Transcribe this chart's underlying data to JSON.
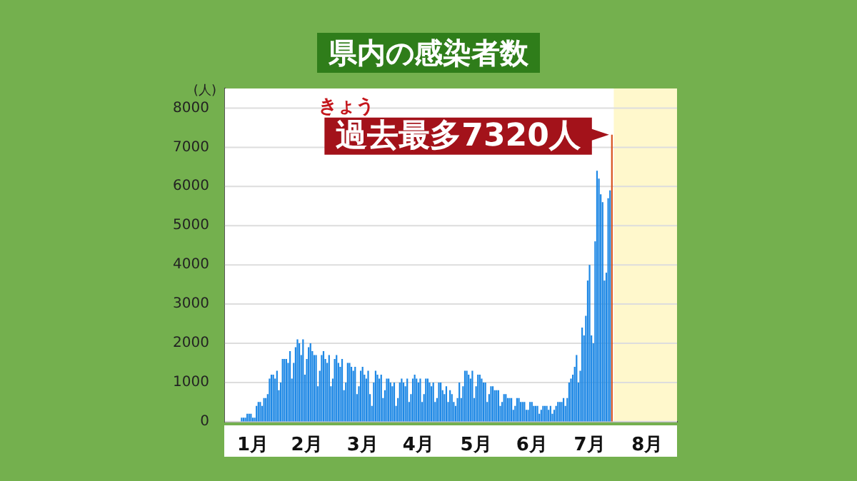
{
  "chart_data": {
    "type": "bar",
    "title": "県内の感染者数",
    "ylabel": "(人)",
    "xlim": [
      "--01-01",
      "--09-01"
    ],
    "xticks": [
      {
        "value": "--01-16",
        "label": "1月"
      },
      {
        "value": "--02-14",
        "label": "2月"
      },
      {
        "value": "--03-16",
        "label": "3月"
      },
      {
        "value": "--04-15",
        "label": "4月"
      },
      {
        "value": "--05-16",
        "label": "5月"
      },
      {
        "value": "--06-15",
        "label": "6月"
      },
      {
        "value": "--07-16",
        "label": "7月"
      },
      {
        "value": "--08-16",
        "label": "8月"
      }
    ],
    "ylim": [
      0,
      8500
    ],
    "yticks": [
      0,
      1000,
      2000,
      3000,
      4000,
      5000,
      6000,
      7000,
      8000
    ],
    "grid": "y",
    "legend": false,
    "bands": [
      {
        "axis": "x",
        "from": "--07-29",
        "to": "--09-01",
        "label": null,
        "color": "#fff8cc"
      }
    ],
    "annotations": [
      {
        "text": "きょう"
      },
      {
        "text": "過去最多7320人",
        "x": "--07-28",
        "y": 7320
      }
    ],
    "series": [
      {
        "color": "#1e88e5",
        "x": [
          "--01-01",
          "--01-02",
          "--01-03",
          "--01-04",
          "--01-05",
          "--01-06",
          "--01-07",
          "--01-08",
          "--01-09",
          "--01-10",
          "--01-11",
          "--01-12",
          "--01-13",
          "--01-14",
          "--01-15",
          "--01-16",
          "--01-17",
          "--01-18",
          "--01-19",
          "--01-20",
          "--01-21",
          "--01-22",
          "--01-23",
          "--01-24",
          "--01-25",
          "--01-26",
          "--01-27",
          "--01-28",
          "--01-29",
          "--01-30",
          "--01-31",
          "--02-01",
          "--02-02",
          "--02-03",
          "--02-04",
          "--02-05",
          "--02-06",
          "--02-07",
          "--02-08",
          "--02-09",
          "--02-10",
          "--02-11",
          "--02-12",
          "--02-13",
          "--02-14",
          "--02-15",
          "--02-16",
          "--02-17",
          "--02-18",
          "--02-19",
          "--02-20",
          "--02-21",
          "--02-22",
          "--02-23",
          "--02-24",
          "--02-25",
          "--02-26",
          "--02-27",
          "--02-28",
          "--03-01",
          "--03-02",
          "--03-03",
          "--03-04",
          "--03-05",
          "--03-06",
          "--03-07",
          "--03-08",
          "--03-09",
          "--03-10",
          "--03-11",
          "--03-12",
          "--03-13",
          "--03-14",
          "--03-15",
          "--03-16",
          "--03-17",
          "--03-18",
          "--03-19",
          "--03-20",
          "--03-21",
          "--03-22",
          "--03-23",
          "--03-24",
          "--03-25",
          "--03-26",
          "--03-27",
          "--03-28",
          "--03-29",
          "--03-30",
          "--03-31",
          "--04-01",
          "--04-02",
          "--04-03",
          "--04-04",
          "--04-05",
          "--04-06",
          "--04-07",
          "--04-08",
          "--04-09",
          "--04-10",
          "--04-11",
          "--04-12",
          "--04-13",
          "--04-14",
          "--04-15",
          "--04-16",
          "--04-17",
          "--04-18",
          "--04-19",
          "--04-20",
          "--04-21",
          "--04-22",
          "--04-23",
          "--04-24",
          "--04-25",
          "--04-26",
          "--04-27",
          "--04-28",
          "--04-29",
          "--04-30",
          "--05-01",
          "--05-02",
          "--05-03",
          "--05-04",
          "--05-05",
          "--05-06",
          "--05-07",
          "--05-08",
          "--05-09",
          "--05-10",
          "--05-11",
          "--05-12",
          "--05-13",
          "--05-14",
          "--05-15",
          "--05-16",
          "--05-17",
          "--05-18",
          "--05-19",
          "--05-20",
          "--05-21",
          "--05-22",
          "--05-23",
          "--05-24",
          "--05-25",
          "--05-26",
          "--05-27",
          "--05-28",
          "--05-29",
          "--05-30",
          "--05-31",
          "--06-01",
          "--06-02",
          "--06-03",
          "--06-04",
          "--06-05",
          "--06-06",
          "--06-07",
          "--06-08",
          "--06-09",
          "--06-10",
          "--06-11",
          "--06-12",
          "--06-13",
          "--06-14",
          "--06-15",
          "--06-16",
          "--06-17",
          "--06-18",
          "--06-19",
          "--06-20",
          "--06-21",
          "--06-22",
          "--06-23",
          "--06-24",
          "--06-25",
          "--06-26",
          "--06-27",
          "--06-28",
          "--06-29",
          "--06-30",
          "--07-01",
          "--07-02",
          "--07-03",
          "--07-04",
          "--07-05",
          "--07-06",
          "--07-07",
          "--07-08",
          "--07-09",
          "--07-10",
          "--07-11",
          "--07-12",
          "--07-13",
          "--07-14",
          "--07-15",
          "--07-16",
          "--07-17",
          "--07-18",
          "--07-19",
          "--07-20",
          "--07-21",
          "--07-22",
          "--07-23",
          "--07-24",
          "--07-25",
          "--07-26",
          "--07-27"
        ],
        "values": [
          0,
          0,
          0,
          0,
          0,
          0,
          0,
          0,
          0,
          100,
          100,
          100,
          200,
          200,
          200,
          100,
          100,
          400,
          500,
          500,
          400,
          600,
          600,
          700,
          1100,
          1200,
          1200,
          1100,
          1300,
          800,
          1000,
          1600,
          1600,
          1600,
          1500,
          1800,
          1100,
          1500,
          1900,
          2100,
          2000,
          1700,
          2100,
          1200,
          1600,
          1900,
          2000,
          1800,
          1700,
          1700,
          900,
          1300,
          1700,
          1800,
          1600,
          1500,
          1700,
          900,
          1100,
          1600,
          1700,
          1500,
          1400,
          1600,
          800,
          1000,
          1500,
          1500,
          1400,
          1300,
          1400,
          700,
          900,
          1300,
          1400,
          1200,
          1100,
          1300,
          700,
          400,
          1000,
          1300,
          1200,
          1100,
          1200,
          600,
          800,
          1100,
          1100,
          1000,
          900,
          1000,
          400,
          600,
          1000,
          1100,
          1000,
          900,
          1100,
          500,
          700,
          1100,
          1200,
          1100,
          1000,
          1100,
          500,
          700,
          1100,
          1100,
          1000,
          900,
          1000,
          500,
          600,
          1000,
          1000,
          800,
          700,
          900,
          500,
          800,
          700,
          500,
          400,
          600,
          1000,
          600,
          900,
          1300,
          1300,
          1200,
          1100,
          1300,
          600,
          900,
          1200,
          1200,
          1100,
          1000,
          1000,
          500,
          700,
          900,
          900,
          800,
          800,
          800,
          400,
          500,
          700,
          700,
          600,
          600,
          600,
          300,
          400,
          600,
          600,
          500,
          500,
          500,
          300,
          300,
          500,
          500,
          400,
          400,
          400,
          200,
          300,
          400,
          400,
          400,
          300,
          400,
          200,
          300,
          400,
          500,
          500,
          500,
          600,
          400,
          600,
          1000,
          1100,
          1200,
          1400,
          1700,
          1000,
          1300,
          2400,
          2200,
          2700,
          3600,
          4000,
          2200,
          2000,
          4600,
          6400,
          6200,
          5800,
          5600,
          3600,
          3800,
          5700,
          5900
        ]
      },
      {
        "color": "#d9541e",
        "x": [
          "--07-28"
        ],
        "values": [
          7320
        ]
      }
    ]
  }
}
